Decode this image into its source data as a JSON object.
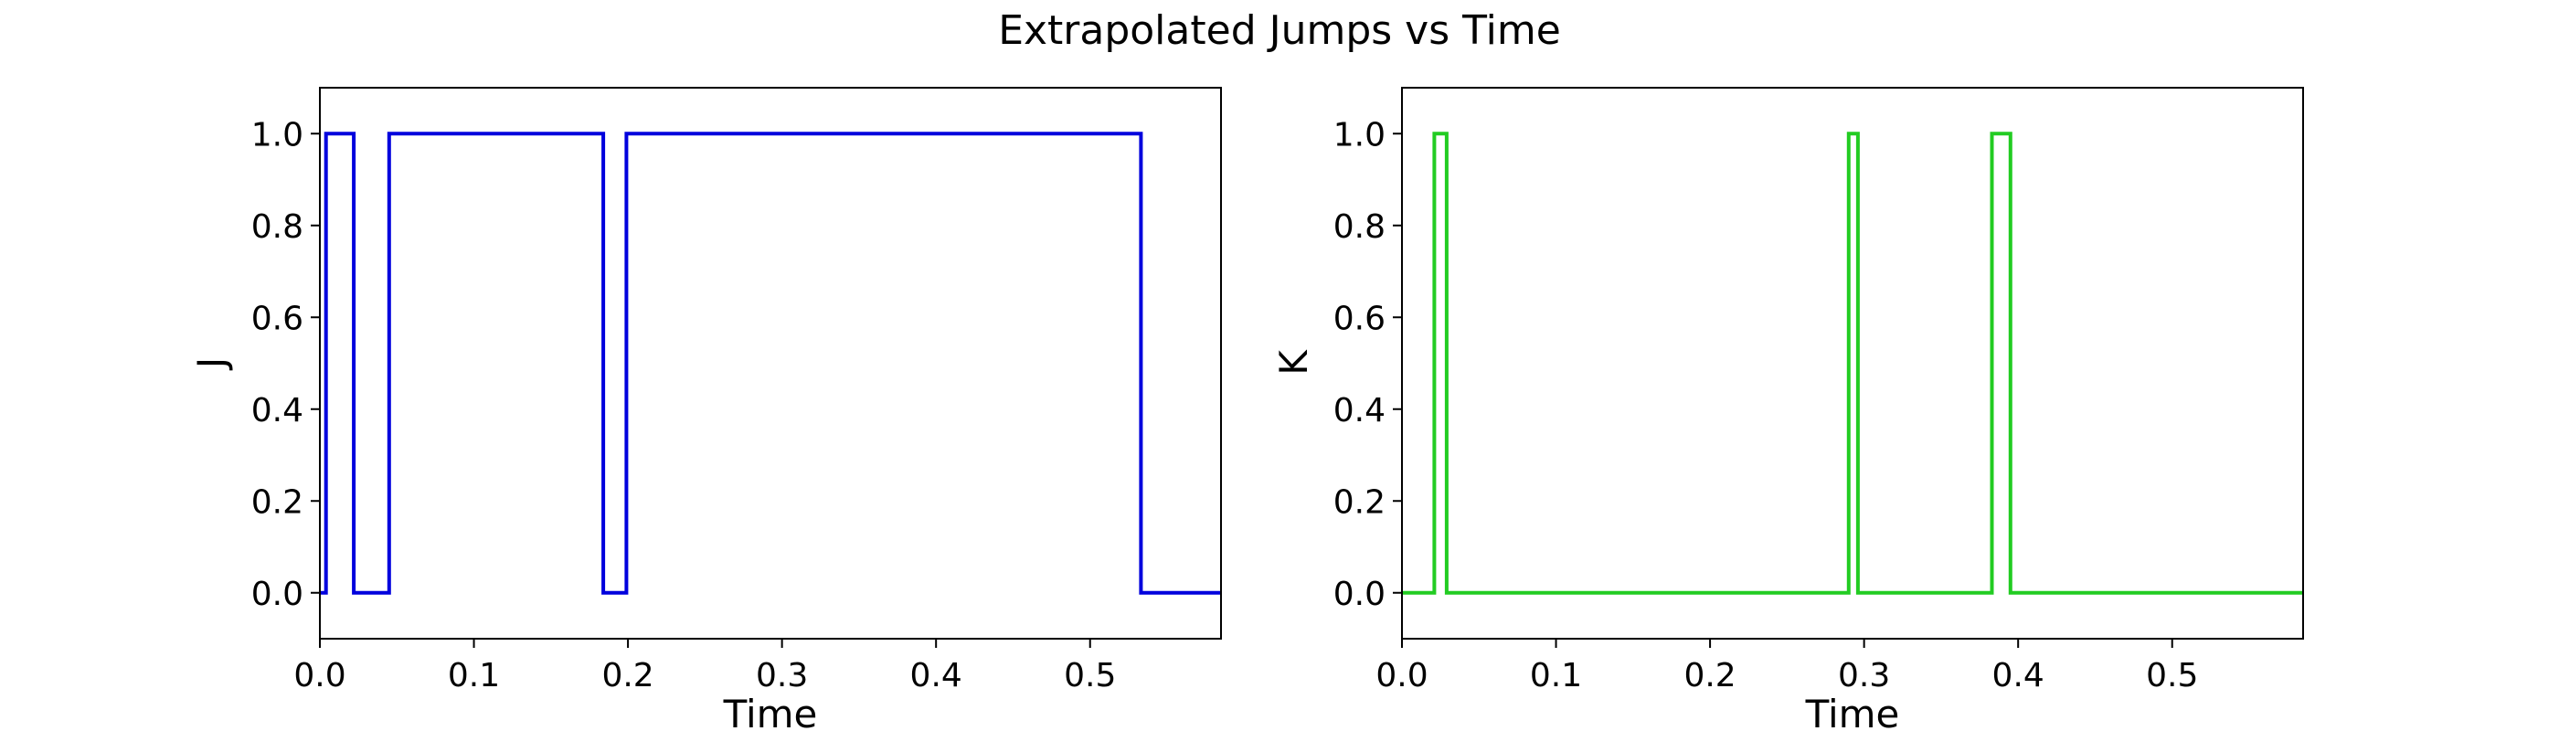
{
  "title": "Extrapolated Jumps vs Time",
  "chart_data": [
    {
      "type": "line",
      "step": true,
      "xlabel": "Time",
      "ylabel": "J",
      "xlim": [
        0.0,
        0.585
      ],
      "ylim": [
        -0.1,
        1.1
      ],
      "xticks": [
        "0.0",
        "0.1",
        "0.2",
        "0.3",
        "0.4",
        "0.5"
      ],
      "yticks": [
        "0.0",
        "0.2",
        "0.4",
        "0.6",
        "0.8",
        "1.0"
      ],
      "grid": false,
      "series": [
        {
          "color": "#0000dd",
          "x": [
            0.0,
            0.004,
            0.004,
            0.022,
            0.022,
            0.045,
            0.045,
            0.184,
            0.184,
            0.199,
            0.199,
            0.533,
            0.533,
            0.585
          ],
          "y": [
            0,
            0,
            1,
            1,
            0,
            0,
            1,
            1,
            0,
            0,
            1,
            1,
            0,
            0
          ]
        }
      ]
    },
    {
      "type": "line",
      "step": true,
      "xlabel": "Time",
      "ylabel": "K",
      "xlim": [
        0.0,
        0.585
      ],
      "ylim": [
        -0.1,
        1.1
      ],
      "xticks": [
        "0.0",
        "0.1",
        "0.2",
        "0.3",
        "0.4",
        "0.5"
      ],
      "yticks": [
        "0.0",
        "0.2",
        "0.4",
        "0.6",
        "0.8",
        "1.0"
      ],
      "grid": false,
      "series": [
        {
          "color": "#22cc22",
          "x": [
            0.0,
            0.021,
            0.021,
            0.029,
            0.029,
            0.29,
            0.29,
            0.296,
            0.296,
            0.383,
            0.383,
            0.395,
            0.395,
            0.585
          ],
          "y": [
            0,
            0,
            1,
            1,
            0,
            0,
            1,
            1,
            0,
            0,
            1,
            1,
            0,
            0
          ]
        }
      ]
    }
  ]
}
